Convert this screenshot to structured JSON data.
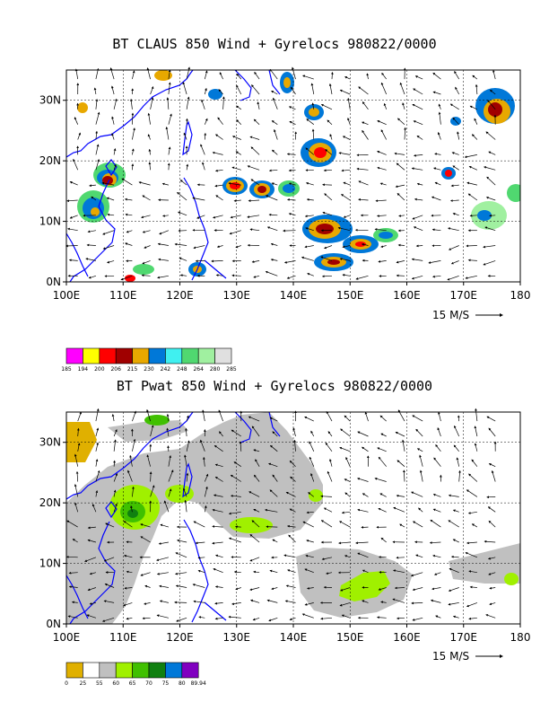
{
  "panels": [
    {
      "title": "BT CLAUS 850 Wind + Gyrelocs 980822/0000",
      "x_ticks": [
        "100E",
        "110E",
        "120E",
        "130E",
        "140E",
        "150E",
        "160E",
        "170E",
        "180"
      ],
      "y_ticks": [
        "0N",
        "10N",
        "20N",
        "30N"
      ],
      "scale_label": "15 M/S",
      "colorbar": {
        "colors": [
          "#ff00ff",
          "#ffff00",
          "#ff0000",
          "#a00000",
          "#e8a800",
          "#0078d8",
          "#40f0f0",
          "#50d870",
          "#a0f0a0",
          "#e0e0e0"
        ],
        "labels": [
          "185",
          "194",
          "200",
          "206",
          "215",
          "230",
          "242",
          "248",
          "264",
          "280",
          "285"
        ]
      }
    },
    {
      "title": "BT Pwat 850 Wind + Gyrelocs 980822/0000",
      "x_ticks": [
        "100E",
        "110E",
        "120E",
        "130E",
        "140E",
        "150E",
        "160E",
        "170E",
        "180"
      ],
      "y_ticks": [
        "0N",
        "10N",
        "20N",
        "30N"
      ],
      "scale_label": "15 M/S",
      "colorbar": {
        "colors": [
          "#e0b000",
          "#ffffff",
          "#c0c0c0",
          "#a0f000",
          "#40c000",
          "#108010",
          "#0078d8",
          "#8000c0"
        ],
        "labels": [
          "0",
          "25",
          "55",
          "60",
          "65",
          "70",
          "75",
          "80",
          "89.94"
        ]
      }
    }
  ],
  "colors": {
    "coastline": "#0000ff",
    "frame": "#000000",
    "pwat_gray": "#c0c0c0",
    "pwat_lime": "#a0f000",
    "pwat_green": "#40c000",
    "pwat_dark": "#108010",
    "pwat_gold": "#e0b000"
  }
}
